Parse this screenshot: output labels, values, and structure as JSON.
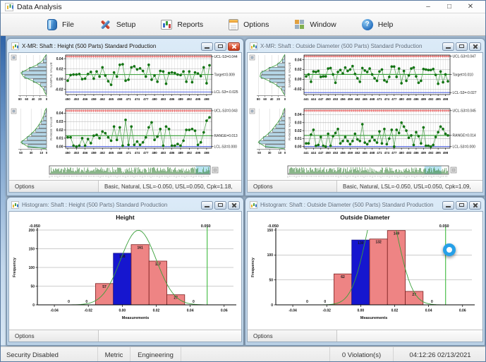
{
  "app": {
    "title": "Data Analysis",
    "controls": {
      "minimize": "–",
      "maximize": "□",
      "close": "✕"
    }
  },
  "toolbar": {
    "items": [
      {
        "label": "File",
        "icon": "file-icon"
      },
      {
        "label": "Setup",
        "icon": "setup-icon"
      },
      {
        "label": "Reports",
        "icon": "reports-icon"
      },
      {
        "label": "Options",
        "icon": "options-icon"
      },
      {
        "label": "Window",
        "icon": "window-icon"
      },
      {
        "label": "Help",
        "icon": "help-icon"
      }
    ]
  },
  "statusbar": {
    "security": "Security Disabled",
    "units": "Metric",
    "mode": "Engineering",
    "violations": "0 Violation(s)",
    "clock": "04:12:26 02/13/2021"
  },
  "colors": {
    "series_point": "#117711",
    "series_line": "#56a556",
    "ucl_line": "#e34f4f",
    "lcl_line": "#4f63e3",
    "center_line": "#2f9b2f",
    "side_bar_fill": "#b5d6e6",
    "hist_bar_fill": "#ee8484",
    "hist_bar_highlight": "#1616cf",
    "curve": "#3aa03a",
    "spec_line": "#4ec04e",
    "navigator_selection": "#b8e4f2"
  },
  "chart_data": {
    "xmr_height": {
      "type": "line",
      "window_title": "X-MR: Shaft : Height (500 Parts) Standard Production",
      "active": true,
      "options_label": "Options",
      "stats_text": "Basic, Natural, LSL=-0.050, USL=0.050, Cpk=1.18,",
      "individuals": {
        "axis_title": "SAMPLE VALUE",
        "ucl": 0.044,
        "ucl_label": "UCL-S3=0.044",
        "center": 0.009,
        "center_label": "Target=0.009",
        "lcl": -0.025,
        "lcl_label": "LCL-S3=-0.025",
        "ylim": [
          -0.03,
          0.047
        ],
        "yticks": [
          0.04,
          0.02,
          0.0,
          -0.02
        ],
        "x_first": 450,
        "xticks": [
          450,
          453,
          456,
          459,
          462,
          465,
          468,
          471,
          474,
          477,
          480,
          483,
          486,
          489,
          492,
          495,
          498
        ],
        "values": [
          -0.003,
          0.008,
          0.009,
          0.009,
          0.01,
          0.0,
          0.001,
          0.01,
          0.014,
          0.001,
          0.015,
          0.005,
          0.023,
          0.007,
          -0.004,
          -0.011,
          0.013,
          0.005,
          0.028,
          0.029,
          -0.003,
          -0.001,
          0.023,
          0.025,
          0.019,
          0.021,
          0.016,
          0.005,
          0.028,
          -0.001,
          0.007,
          -0.005,
          0.016,
          0.015,
          -0.009,
          0.012,
          0.013,
          0.012,
          0.009,
          0.008,
          0.015,
          -0.005,
          0.015,
          -0.006,
          0.013,
          0.011,
          0.006,
          0.023,
          -0.008,
          0.027
        ],
        "side_hist": {
          "max": 85,
          "ticks": [
            80,
            60,
            40,
            20,
            0
          ],
          "values": [
            3,
            10,
            26,
            52,
            74,
            66,
            40,
            18,
            7,
            2
          ]
        }
      },
      "moving_range": {
        "axis_title": "RANGE VALUE",
        "ucl": 0.043,
        "ucl_label": "UCL-S3=0.043",
        "center": 0.013,
        "center_label": "RANGE=0.013",
        "lcl": 0.0,
        "lcl_label": "LCL-S3=0.000",
        "ylim": [
          -0.002,
          0.0455
        ],
        "yticks": [
          0.04,
          0.03,
          0.02,
          0.01,
          0.0
        ],
        "side_hist": {
          "max": 55,
          "ticks": [
            50,
            30,
            10,
            0
          ],
          "values": [
            1,
            3,
            6,
            10,
            15,
            21,
            29,
            38,
            48,
            36
          ]
        }
      },
      "navigator": {
        "selection": [
          0.91,
          1.0
        ]
      }
    },
    "xmr_od": {
      "type": "line",
      "window_title": "X-MR: Shaft : Outside Diameter (500 Parts) Standard Production",
      "active": false,
      "options_label": "Options",
      "stats_text": "Basic, Natural, LSL=-0.050, USL=0.050, Cpk=1.09,",
      "individuals": {
        "axis_title": "SAMPLE VALUE",
        "ucl": 0.047,
        "ucl_label": "UCL-S3=0.047",
        "center": 0.01,
        "center_label": "Target=0.010",
        "lcl": -0.027,
        "lcl_label": "LCL-S3=-0.027",
        "ylim": [
          -0.031,
          0.0495
        ],
        "yticks": [
          0.04,
          0.02,
          0.0,
          -0.02
        ],
        "x_first": 441,
        "xticks": [
          441,
          444,
          447,
          450,
          453,
          456,
          459,
          462,
          465,
          468,
          471,
          474,
          477,
          480,
          483,
          486,
          489,
          492,
          495,
          498
        ],
        "values": [
          0.006,
          0.01,
          -0.005,
          0.016,
          0.015,
          0.017,
          0.005,
          0.006,
          0.006,
          0.022,
          0.023,
          0.01,
          -0.007,
          0.015,
          0.019,
          0.012,
          0.024,
          0.017,
          0.02,
          0.027,
          0.011,
          0.002,
          -0.005,
          0.023,
          0.018,
          0.015,
          0.022,
          0.01,
          0.002,
          -0.003,
          0.016,
          0.02,
          -0.002,
          -0.005,
          0.005,
          0.026,
          0.026,
          0.005,
          0.022,
          -0.008,
          0.017,
          -0.003,
          0.008,
          0.022,
          0.024,
          0.006,
          -0.007,
          -0.003,
          0.021,
          0.02,
          0.019,
          0.019,
          0.021,
          0.009,
          -0.009,
          0.016,
          -0.006,
          0.01,
          -0.004
        ],
        "side_hist": {
          "max": 85,
          "ticks": [
            80,
            60,
            40,
            20,
            0
          ],
          "values": [
            2,
            8,
            22,
            48,
            70,
            72,
            46,
            24,
            9,
            3
          ]
        }
      },
      "moving_range": {
        "axis_title": "RANGE VALUE",
        "ucl": 0.045,
        "ucl_label": "UCL-S3=0.045",
        "center": 0.014,
        "center_label": "RANGE=0.014",
        "lcl": 0.0,
        "lcl_label": "LCL-S3=0.000",
        "ylim": [
          -0.002,
          0.0475
        ],
        "yticks": [
          0.04,
          0.03,
          0.02,
          0.01,
          0.0
        ],
        "side_hist": {
          "max": 55,
          "ticks": [
            50,
            30,
            10,
            0
          ],
          "values": [
            1,
            3,
            7,
            12,
            18,
            24,
            32,
            42,
            50,
            38
          ]
        }
      },
      "navigator": {
        "selection": [
          0.85,
          0.955
        ]
      }
    },
    "hist_height": {
      "type": "bar",
      "window_title": "Histogram: Shaft : Height (500 Parts) Standard Production",
      "active": false,
      "chart_title": "Height",
      "options_label": "Options",
      "stats_text": "",
      "xlabel": "Measurements",
      "ylabel": "Frequency",
      "lsl": -0.05,
      "lsl_label": "-0.050",
      "usl": 0.05,
      "usl_label": "0.050",
      "xlim": [
        -0.05,
        0.0655
      ],
      "ylim": [
        0,
        200
      ],
      "yticks": [
        0,
        50,
        100,
        150,
        200
      ],
      "xticks": [
        -0.04,
        -0.02,
        0.0,
        0.02,
        0.04,
        0.06
      ],
      "bin_width": 0.0105,
      "bin_centers": [
        -0.0315,
        -0.021,
        -0.0105,
        0,
        0.0105,
        0.021,
        0.0315,
        0.042
      ],
      "values": [
        0,
        0,
        57,
        138,
        161,
        117,
        27,
        0
      ],
      "highlight_index": 3,
      "curve": {
        "mean": 0.0095,
        "sd": 0.0105,
        "n": 500
      }
    },
    "hist_od": {
      "type": "bar",
      "window_title": "Histogram: Shaft : Outside Diameter (500 Parts) Standard Production",
      "active": false,
      "chart_title": "Outside Diameter",
      "options_label": "Options",
      "stats_text": "",
      "xlabel": "Measurements",
      "ylabel": "Frequency",
      "lsl": -0.05,
      "lsl_label": "-0.050",
      "usl": 0.05,
      "usl_label": "0.050",
      "xlim": [
        -0.05,
        0.0655
      ],
      "ylim": [
        0,
        150
      ],
      "yticks": [
        0,
        50,
        100,
        150
      ],
      "xticks": [
        -0.04,
        -0.02,
        0.0,
        0.02,
        0.04,
        0.06
      ],
      "bin_width": 0.0105,
      "bin_centers": [
        -0.0315,
        -0.021,
        -0.0105,
        0,
        0.0105,
        0.021,
        0.0315,
        0.042
      ],
      "values": [
        0,
        0,
        62,
        130,
        132,
        149,
        27,
        0
      ],
      "highlight_index": 3,
      "curve": {
        "mean": 0.0125,
        "sd": 0.009,
        "n": 500
      }
    }
  }
}
